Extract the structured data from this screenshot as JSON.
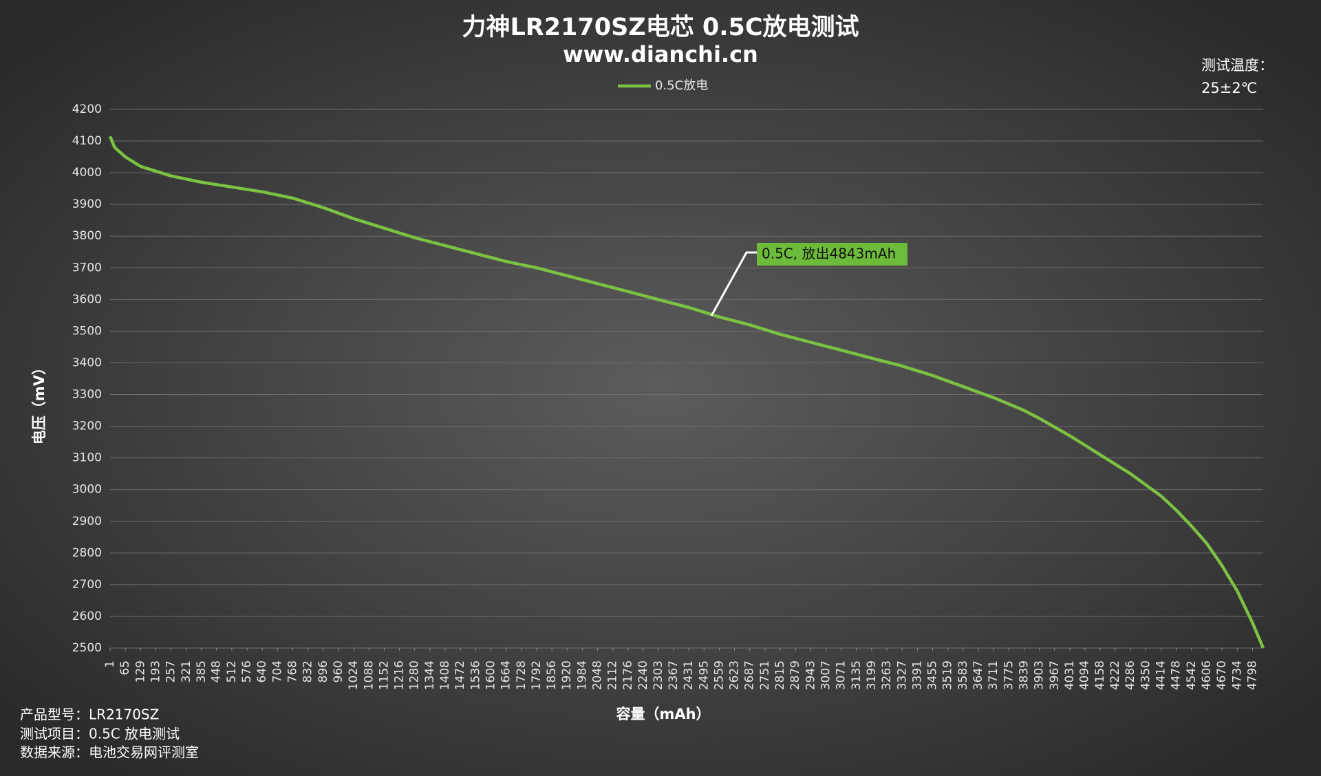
{
  "chart_data": {
    "type": "line",
    "title": "力神LR2170SZ电芯 0.5C放电测试",
    "subtitle": "www.dianchi.cn",
    "x_label": "容量（mAh）",
    "y_label": "电压（mV）",
    "annotation": "0.5C, 放出4843mAh",
    "temperature_note": [
      "测试温度：",
      "25±2℃"
    ],
    "footnotes": [
      "产品型号：LR2170SZ",
      "测试项目：0.5C 放电测试",
      "数据来源：电池交易网评测室"
    ],
    "legend": "top",
    "grid": true,
    "xlim": [
      1,
      4843
    ],
    "ylim": [
      2500,
      4200
    ],
    "yticks": [
      2500,
      2600,
      2700,
      2800,
      2900,
      3000,
      3100,
      3200,
      3300,
      3400,
      3500,
      3600,
      3700,
      3800,
      3900,
      4000,
      4100,
      4200
    ],
    "xticks": [
      1,
      65,
      129,
      193,
      257,
      321,
      385,
      448,
      512,
      576,
      640,
      704,
      768,
      832,
      896,
      960,
      1024,
      1088,
      1152,
      1216,
      1280,
      1344,
      1408,
      1472,
      1536,
      1600,
      1664,
      1728,
      1792,
      1856,
      1920,
      1984,
      2048,
      2112,
      2176,
      2240,
      2303,
      2367,
      2431,
      2495,
      2559,
      2623,
      2687,
      2751,
      2815,
      2879,
      2943,
      3007,
      3071,
      3135,
      3199,
      3263,
      3327,
      3391,
      3455,
      3519,
      3583,
      3647,
      3711,
      3775,
      3839,
      3903,
      3967,
      4031,
      4094,
      4158,
      4222,
      4286,
      4350,
      4414,
      4478,
      4542,
      4606,
      4670,
      4734,
      4798
    ],
    "x": [
      1,
      20,
      65,
      129,
      193,
      257,
      385,
      512,
      640,
      704,
      768,
      832,
      896,
      1024,
      1152,
      1280,
      1408,
      1536,
      1664,
      1792,
      1920,
      2048,
      2176,
      2303,
      2431,
      2559,
      2687,
      2815,
      2943,
      3071,
      3199,
      3327,
      3455,
      3583,
      3711,
      3839,
      3903,
      4031,
      4158,
      4286,
      4414,
      4478,
      4542,
      4606,
      4670,
      4734,
      4798,
      4843
    ],
    "series": [
      {
        "name": "0.5C放电",
        "color": "#7cc242",
        "values": [
          4115,
          4080,
          4050,
          4020,
          4005,
          3990,
          3970,
          3955,
          3940,
          3930,
          3920,
          3905,
          3890,
          3855,
          3825,
          3795,
          3770,
          3745,
          3720,
          3700,
          3675,
          3650,
          3625,
          3600,
          3575,
          3545,
          3520,
          3490,
          3465,
          3440,
          3415,
          3390,
          3360,
          3325,
          3290,
          3250,
          3225,
          3170,
          3110,
          3050,
          2980,
          2935,
          2885,
          2830,
          2760,
          2680,
          2580,
          2500
        ]
      }
    ]
  }
}
